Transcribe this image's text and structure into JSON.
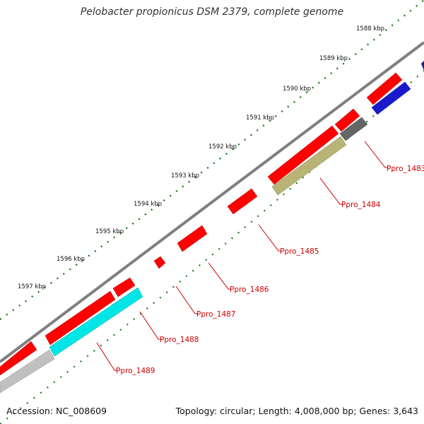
{
  "title": "Pelobacter propionicus DSM 2379, complete genome",
  "footer": {
    "accession": "Accession: NC_008609",
    "topology": "Topology: circular; Length: 4,008,000 bp; Genes: 3,643"
  },
  "scale_labels": [
    "1588 kbp",
    "1589 kbp",
    "1590 kbp",
    "1591 kbp",
    "1592 kbp",
    "1593 kbp",
    "1594 kbp",
    "1595 kbp",
    "1596 kbp",
    "1597 kbp"
  ],
  "genes": [
    {
      "label": "Ppro_1483",
      "color": "#ff0000"
    },
    {
      "label": "Ppro_1484",
      "color": "#ff0000"
    },
    {
      "label": "Ppro_1485",
      "color": "#ff0000"
    },
    {
      "label": "Ppro_1486",
      "color": "#ff0000"
    },
    {
      "label": "Ppro_1487",
      "color": "#ff0000"
    },
    {
      "label": "Ppro_1488",
      "color": "#ff0000"
    },
    {
      "label": "Ppro_1489",
      "color": "#ff0000"
    }
  ],
  "colors": {
    "backbone": "#7f7f7f",
    "tick": "#1f7a1f",
    "label": "#cc0000",
    "gene_forward": "#ff0000",
    "gene_blue": "#1a1acc",
    "gene_gray": "#666666",
    "gene_olive": "#b8b476",
    "gene_cyan": "#00e6e6",
    "gene_lightgray": "#c0c0c0",
    "gene_navy": "#202070"
  }
}
